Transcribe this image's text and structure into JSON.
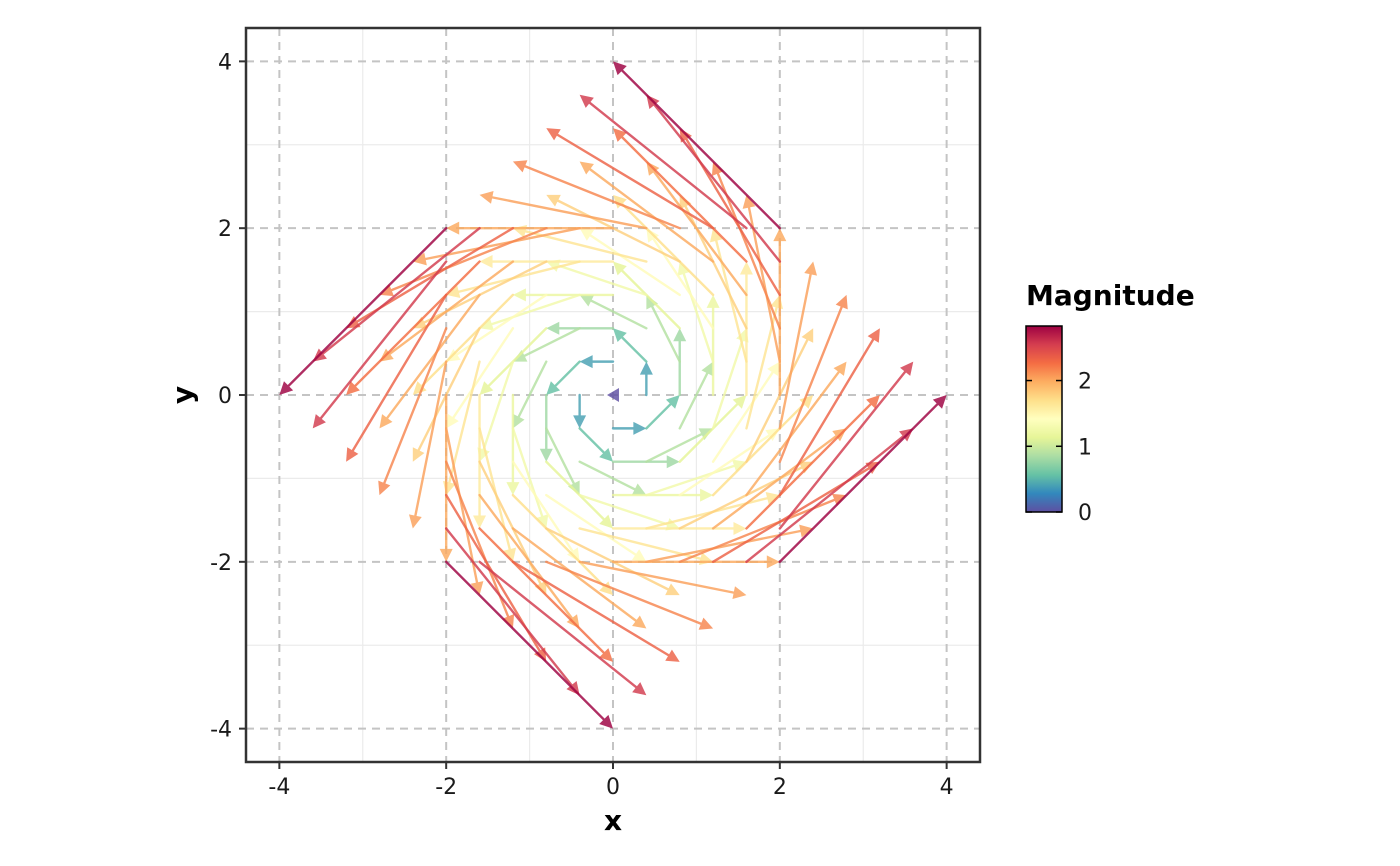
{
  "chart_data": {
    "type": "vector_field",
    "xlabel": "x",
    "ylabel": "y",
    "xlim": [
      -4.4,
      4.4
    ],
    "ylim": [
      -4.4,
      4.4
    ],
    "x_ticks": [
      -4,
      -2,
      0,
      2,
      4
    ],
    "y_ticks": [
      -4,
      -2,
      0,
      2,
      4
    ],
    "x_tick_labels": [
      "-4",
      "-2",
      "0",
      "2",
      "4"
    ],
    "y_tick_labels": [
      "-4",
      "-2",
      "0",
      "2",
      "4"
    ],
    "grid": true,
    "grid_style": "dashed at major ticks",
    "vector_field": {
      "grid_min": -2,
      "grid_max": 2,
      "grid_step": 0.4,
      "u": "-y",
      "v": "x",
      "arrow_scale": 1,
      "magnitude": "sqrt(x^2 + y^2)"
    },
    "legend": {
      "title": "Magnitude",
      "placement": "right",
      "range": [
        0,
        2.83
      ],
      "ticks": [
        0,
        1,
        2
      ],
      "tick_labels": [
        "0",
        "1",
        "2"
      ],
      "colormap": [
        "#5e4fa2",
        "#3288bd",
        "#66c2a5",
        "#abdda4",
        "#e6f598",
        "#ffffbf",
        "#fee08b",
        "#fdae61",
        "#f46d43",
        "#d53e4f",
        "#9e0142"
      ]
    }
  }
}
